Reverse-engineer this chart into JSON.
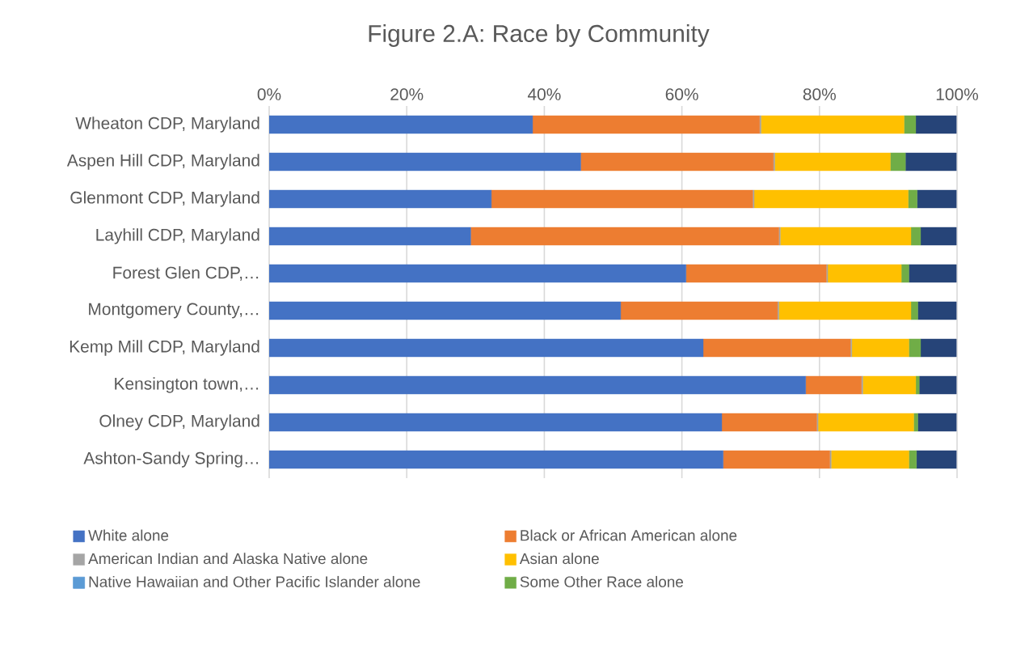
{
  "chart_data": {
    "type": "bar",
    "orientation": "horizontal",
    "stacked": true,
    "title": "Figure 2.A: Race by Community",
    "categories": [
      "Wheaton CDP, Maryland",
      "Aspen Hill CDP, Maryland",
      "Glenmont CDP, Maryland",
      "Layhill CDP, Maryland",
      "Forest Glen CDP,…",
      "Montgomery County,…",
      "Kemp Mill CDP, Maryland",
      "Kensington town,…",
      "Olney CDP, Maryland",
      "Ashton-Sandy Spring…"
    ],
    "series": [
      {
        "name": "White alone",
        "color": "#4472c4",
        "values": [
          38.3,
          45.3,
          32.3,
          29.3,
          60.6,
          51.1,
          63.1,
          78.0,
          65.8,
          66.0
        ]
      },
      {
        "name": "Black or African American alone",
        "color": "#ed7d31",
        "values": [
          33.0,
          28.0,
          38.0,
          44.8,
          20.4,
          22.8,
          21.4,
          8.1,
          13.8,
          15.5
        ]
      },
      {
        "name": "American Indian and Alaska Native alone",
        "color": "#a5a5a5",
        "values": [
          0.2,
          0.2,
          0.2,
          0.2,
          0.2,
          0.2,
          0.2,
          0.2,
          0.2,
          0.2
        ]
      },
      {
        "name": "Asian alone",
        "color": "#ffc000",
        "values": [
          20.8,
          16.8,
          22.4,
          19.0,
          10.7,
          19.2,
          8.3,
          7.7,
          13.9,
          11.3
        ]
      },
      {
        "name": "Native Hawaiian and Other Pacific Islander alone",
        "color": "#5b9bd5",
        "values": [
          null,
          null,
          null,
          null,
          null,
          null,
          null,
          null,
          null,
          null
        ]
      },
      {
        "name": "Some Other Race alone",
        "color": "#70ad47",
        "values": [
          1.7,
          2.2,
          1.3,
          1.4,
          1.1,
          1.0,
          1.7,
          0.5,
          0.6,
          1.1
        ]
      },
      {
        "color": "#264478",
        "values": [
          5.9,
          7.4,
          5.7,
          5.2,
          6.9,
          5.6,
          5.2,
          5.4,
          5.6,
          5.8
        ]
      }
    ],
    "xlim": [
      0,
      100
    ],
    "xticks": [
      {
        "value": 0,
        "label": "0%"
      },
      {
        "value": 20,
        "label": "20%"
      },
      {
        "value": 40,
        "label": "40%"
      },
      {
        "value": 60,
        "label": "60%"
      },
      {
        "value": 80,
        "label": "80%"
      },
      {
        "value": 100,
        "label": "100%"
      }
    ],
    "grid": "x",
    "legend": "bottom"
  }
}
